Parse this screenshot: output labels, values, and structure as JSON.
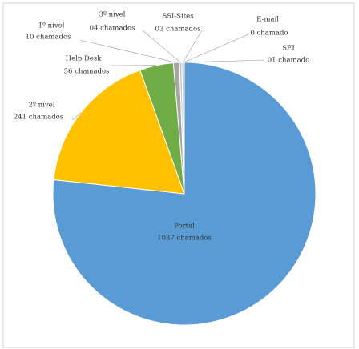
{
  "chart_data": {
    "type": "pie",
    "categories": [
      "Portal",
      "2º nível",
      "Help Desk",
      "1º nível",
      "3º nível",
      "SSI-Sites",
      "E-mail",
      "SEI"
    ],
    "values": [
      1037,
      241,
      56,
      10,
      4,
      3,
      0,
      1
    ],
    "value_labels": [
      "1037 chamados",
      "241 chamados",
      "56 chamados",
      "10 chamados",
      "04 chamados",
      "03 chamados",
      "0 chamado",
      "01 chamado"
    ],
    "colors": [
      "#5b9bd5",
      "#ffc000",
      "#70ad47",
      "#a5a5a5",
      "#c9c9c9",
      "#9dc3e6",
      "#7f7f7f",
      "#d6dce5"
    ]
  }
}
